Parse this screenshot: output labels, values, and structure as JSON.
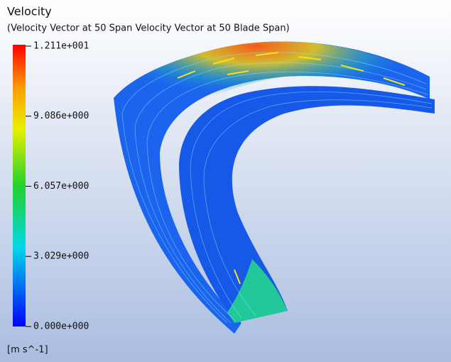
{
  "header": {
    "title": "Velocity",
    "subtitle": "(Velocity Vector at 50 Span Velocity Vector at 50 Blade Span)"
  },
  "legend": {
    "ticks": [
      {
        "value": 12.11,
        "label": "1.211e+001"
      },
      {
        "value": 9.086,
        "label": "9.086e+000"
      },
      {
        "value": 6.057,
        "label": "6.057e+000"
      },
      {
        "value": 3.029,
        "label": "3.029e+000"
      },
      {
        "value": 0,
        "label": "0.000e+000"
      }
    ],
    "unit": "[m s^-1]"
  }
}
